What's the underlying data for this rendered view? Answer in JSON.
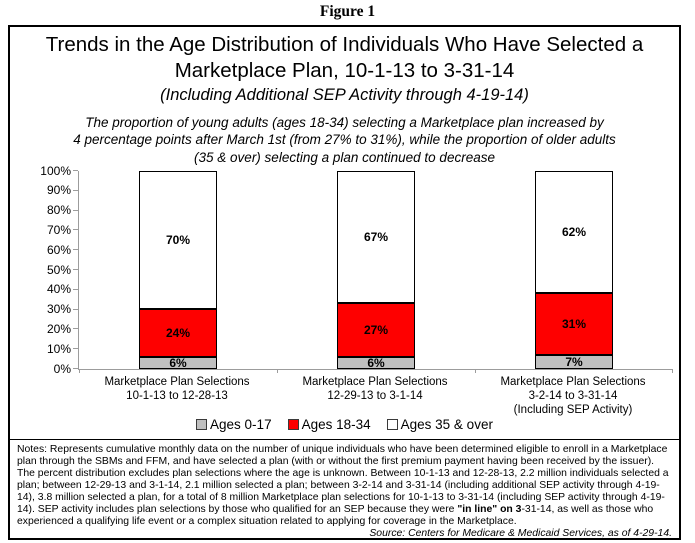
{
  "figure_label": "Figure 1",
  "header": {
    "title_line1": "Trends in the Age Distribution of Individuals Who Have Selected a",
    "title_line2": "Marketplace Plan, 10-1-13 to 3-31-14",
    "title_line3": "(Including Additional SEP Activity through 4-19-14)",
    "subtitle_line1": "The proportion of young adults (ages 18-34) selecting a Marketplace plan increased by",
    "subtitle_line2": "4 percentage points after March 1st (from 27% to 31%), while the proportion of older adults",
    "subtitle_line3": "(35 & over) selecting a plan continued to decrease"
  },
  "chart_data": {
    "type": "bar",
    "stacked": true,
    "title": "Trends in the Age Distribution of Individuals Who Have Selected a Marketplace Plan, 10-1-13 to 3-31-14",
    "xlabel": "",
    "ylabel": "",
    "ylim": [
      0,
      100
    ],
    "grid": false,
    "legend_position": "bottom",
    "y_ticks": [
      "0%",
      "10%",
      "20%",
      "30%",
      "40%",
      "50%",
      "60%",
      "70%",
      "80%",
      "90%",
      "100%"
    ],
    "categories": [
      [
        "Marketplace Plan Selections",
        "10-1-13 to 12-28-13"
      ],
      [
        "Marketplace Plan Selections",
        "12-29-13 to 3-1-14"
      ],
      [
        "Marketplace Plan Selections",
        "3-2-14 to 3-31-14",
        "(Including SEP Activity)"
      ]
    ],
    "series": [
      {
        "name": "Ages 0-17",
        "color": "#c0c0c0",
        "values": [
          6,
          6,
          7
        ]
      },
      {
        "name": "Ages 18-34",
        "color": "#fe0000",
        "values": [
          24,
          27,
          31
        ]
      },
      {
        "name": "Ages 35 & over",
        "color": "#ffffff",
        "values": [
          70,
          67,
          62
        ]
      }
    ],
    "bar_border_color": "#000000",
    "axis_color": "#9c9c9c"
  },
  "notes": {
    "text_before_bold": "Notes:  Represents cumulative monthly data on the number of unique individuals who have been determined eligible to enroll in a Marketplace plan through the SBMs and FFM, and have selected a plan (with or without the first premium payment having been received by the issuer).  The percent distribution excludes plan selections where the age is unknown.  Between 10-1-13 and 12-28-13, 2.2 million individuals selected a plan; between 12-29-13 and 3-1-14, 2.1 million selected a plan; between 3-2-14 and 3-31-14 (including additional SEP activity through 4-19-14), 3.8 million selected a plan, for a total of 8 million Marketplace plan selections for 10-1-13 to 3-31-14 (including SEP activity through 4-19-14). SEP activity includes plan selections by those who qualified for an SEP because they were ",
    "bold_text": "\"in line\" on 3",
    "text_after_bold": "-31-14, as well as those who experienced a qualifying life event or a complex situation related to applying for coverage in the Marketplace.",
    "source": "Source:  Centers for Medicare & Medicaid Services, as of 4-29-14."
  }
}
